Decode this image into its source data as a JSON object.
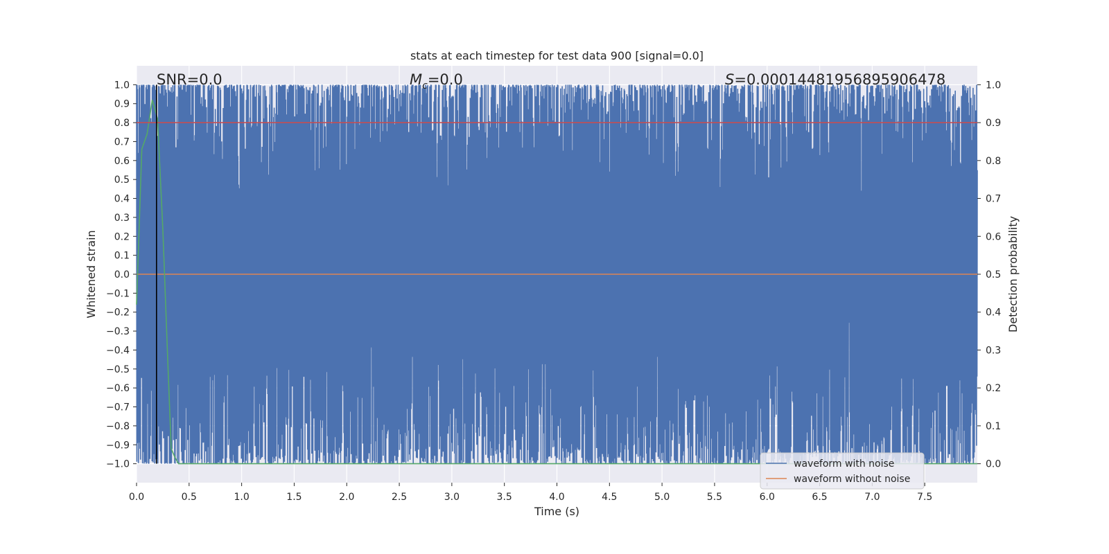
{
  "chart_data": {
    "type": "line",
    "title": "stats at each timestep for test data 900 [signal=0.0]",
    "xlabel": "Time (s)",
    "ylabel": "Whitened strain",
    "ylabel_right": "Detection probability",
    "xlim": [
      0.0,
      8.0
    ],
    "ylim": [
      -1.1,
      1.1
    ],
    "ylim_right": [
      -0.05,
      1.05
    ],
    "x_ticks": [
      "0.0",
      "0.5",
      "1.0",
      "1.5",
      "2.0",
      "2.5",
      "3.0",
      "3.5",
      "4.0",
      "4.5",
      "5.0",
      "5.5",
      "6.0",
      "6.5",
      "7.0",
      "7.5"
    ],
    "y_ticks": [
      "1.0",
      "0.9",
      "0.8",
      "0.7",
      "0.6",
      "0.5",
      "0.4",
      "0.3",
      "0.2",
      "0.1",
      "0.0",
      "−0.1",
      "−0.2",
      "−0.3",
      "−0.4",
      "−0.5",
      "−0.6",
      "−0.7",
      "−0.8",
      "−0.9",
      "−1.0"
    ],
    "y_ticks_right": [
      "1.0",
      "0.9",
      "0.8",
      "0.7",
      "0.6",
      "0.5",
      "0.4",
      "0.3",
      "0.2",
      "0.1",
      "0.0"
    ],
    "grid": true,
    "legend_position": "lower-right",
    "annotations": {
      "snr": "SNR=0.0",
      "mc_symbol": "M",
      "mc_sub": "c",
      "mc_value": "=0.0",
      "s_symbol": "S",
      "s_value": "=0.00014481956895906478"
    },
    "marker_line_x": 0.19,
    "threshold_right": 0.9,
    "series": [
      {
        "name": "waveform with noise",
        "color": "#4c72b0",
        "axis": "left",
        "x_range": [
          0.0,
          8.0
        ],
        "y_range": [
          -1.0,
          1.0
        ],
        "description_values": "noise oscillating between -1.0 and 1.0 across full time range"
      },
      {
        "name": "waveform without noise",
        "color": "#dd8452",
        "axis": "left",
        "x": [
          0.0,
          8.0
        ],
        "y": [
          0.0,
          0.0
        ]
      },
      {
        "color": "#55a868",
        "axis": "right",
        "x": [
          0.0,
          0.05,
          0.1,
          0.15,
          0.2,
          0.25,
          0.3,
          0.33,
          0.36,
          0.38,
          0.4,
          0.6,
          1.0,
          2.0,
          3.0,
          4.0,
          5.0,
          6.0,
          7.0,
          8.0
        ],
        "y": [
          0.42,
          0.83,
          0.87,
          0.96,
          0.91,
          0.62,
          0.25,
          0.04,
          0.02,
          0.01,
          0.0,
          0.0,
          0.0,
          0.0,
          0.0,
          0.0,
          0.0,
          0.0,
          0.0,
          0.0
        ]
      },
      {
        "color": "#c44e52",
        "axis": "right",
        "x": [
          0.0,
          8.0
        ],
        "y": [
          0.9,
          0.9
        ]
      }
    ]
  }
}
